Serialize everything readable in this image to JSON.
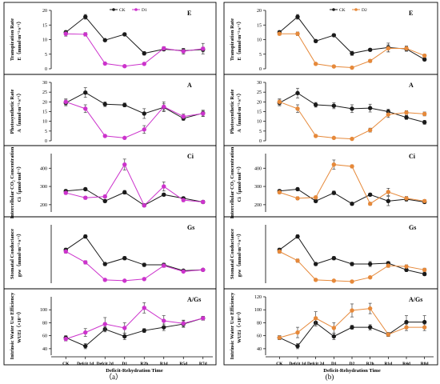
{
  "chart_data": {
    "type": "line",
    "figure_labels": [
      "（a）",
      "(b)"
    ],
    "panels": [
      {
        "id": "a",
        "label": "（a）",
        "xlabel": "Deficit-Rehydration Time",
        "categories": [
          "CK",
          "Defcit 1d",
          "Defcit 2d",
          "D1",
          "R2h",
          "R1d",
          "R5d",
          "R7d"
        ],
        "legend": [
          "CK",
          "D1"
        ],
        "subplots": [
          {
            "tag": "E",
            "ylabel": "Transpiration Rate",
            "yunit": "E（mmol·m⁻²·s⁻¹）",
            "ylim": [
              0,
              20
            ],
            "yticks": [
              0,
              5,
              10,
              15,
              20
            ],
            "series": [
              {
                "name": "CK",
                "values": [
                  12.5,
                  17.8,
                  9.8,
                  11.8,
                  5.3,
                  6.7,
                  6.2,
                  6.6
                ],
                "err": [
                  0.6,
                  0.8,
                  0.4,
                  0.5,
                  0.6,
                  0.5,
                  0.8,
                  0.8
                ]
              },
              {
                "name": "D1",
                "values": [
                  12.0,
                  11.8,
                  1.8,
                  0.9,
                  1.7,
                  7.0,
                  6.0,
                  6.9
                ],
                "err": [
                  0.8,
                  0.6,
                  0.2,
                  0.1,
                  0.2,
                  0.6,
                  1.0,
                  1.8
                ]
              }
            ]
          },
          {
            "tag": "A",
            "ylabel": "Photosynthetic Rate",
            "yunit": "A（mmol·m⁻²·s⁻¹）",
            "ylim": [
              0,
              30
            ],
            "yticks": [
              0,
              5,
              10,
              15,
              20,
              25,
              30
            ],
            "series": [
              {
                "name": "CK",
                "values": [
                  19.5,
                  24.8,
                  18.8,
                  18.4,
                  14.0,
                  17.2,
                  11.5,
                  14.2
                ],
                "err": [
                  1.5,
                  2.5,
                  1.2,
                  1.0,
                  2.5,
                  1.8,
                  1.0,
                  1.5
                ]
              },
              {
                "name": "D1",
                "values": [
                  20.0,
                  16.5,
                  2.5,
                  1.5,
                  5.8,
                  17.5,
                  12.5,
                  14.0
                ],
                "err": [
                  1.5,
                  2.0,
                  0.5,
                  0.4,
                  2.0,
                  2.5,
                  1.2,
                  1.5
                ]
              }
            ]
          },
          {
            "tag": "Ci",
            "ylabel": "Intercellular CO₂ Concentration",
            "yunit": "Ci（μmol·mol⁻¹）",
            "ylim": [
              160,
              480
            ],
            "yticks": [
              200,
              300,
              400
            ],
            "series": [
              {
                "name": "CK",
                "values": [
                  275,
                  285,
                  220,
                  268,
                  197,
                  255,
                  235,
                  215
                ],
                "err": [
                  8,
                  8,
                  8,
                  10,
                  8,
                  8,
                  8,
                  8
                ]
              },
              {
                "name": "D1",
                "values": [
                  265,
                  238,
                  245,
                  420,
                  196,
                  300,
                  225,
                  215
                ],
                "err": [
                  8,
                  8,
                  8,
                  30,
                  8,
                  25,
                  8,
                  8
                ]
              }
            ]
          },
          {
            "tag": "Gs",
            "ylabel": "Stomatal Conductance",
            "yunit": "gsw（mmol·m⁻²·s⁻¹）",
            "ylim": [
              0,
              0.7
            ],
            "yticks": [],
            "series": [
              {
                "name": "CK",
                "values": [
                  0.4,
                  0.56,
                  0.23,
                  0.3,
                  0.22,
                  0.22,
                  0.15,
                  0.16
                ],
                "err": [
                  0.02,
                  0.02,
                  0.02,
                  0.02,
                  0.02,
                  0.02,
                  0.01,
                  0.01
                ]
              },
              {
                "name": "D1",
                "values": [
                  0.38,
                  0.25,
                  0.04,
                  0.03,
                  0.05,
                  0.21,
                  0.14,
                  0.16
                ],
                "err": [
                  0.02,
                  0.02,
                  0.01,
                  0.01,
                  0.01,
                  0.02,
                  0.01,
                  0.01
                ]
              }
            ]
          },
          {
            "tag": "A/Gs",
            "ylabel": "Intrinsic Water Use Efficiency",
            "yunit": "WUEi（×10⁻³）",
            "ylim": [
              30,
              120
            ],
            "yticks": [
              40,
              60,
              80,
              100
            ],
            "series": [
              {
                "name": "CK",
                "values": [
                  57,
                  44,
                  70,
                  59,
                  68,
                  73,
                  78,
                  87
                ],
                "err": [
                  3,
                  4,
                  4,
                  5,
                  3,
                  5,
                  5,
                  3
                ]
              },
              {
                "name": "D1",
                "values": [
                  55,
                  65,
                  78,
                  72,
                  103,
                  83,
                  79,
                  87
                ],
                "err": [
                  3,
                  6,
                  10,
                  8,
                  8,
                  8,
                  5,
                  3
                ]
              }
            ]
          }
        ]
      },
      {
        "id": "b",
        "label": "(b)",
        "xlabel": "Deficit-Rehydration Time",
        "categories": [
          "CK",
          "Defcit 1d",
          "Defcit 2d",
          "D1",
          "D2",
          "R2h",
          "R1d",
          "R4d",
          "R8d"
        ],
        "legend": [
          "CK",
          "D2"
        ],
        "subplots": [
          {
            "tag": "E",
            "ylabel": "Transpiration Rate",
            "yunit": "E（mmol·m⁻²·s⁻¹）",
            "ylim": [
              0,
              20
            ],
            "yticks": [
              0,
              5,
              10,
              15,
              20
            ],
            "series": [
              {
                "name": "CK",
                "values": [
                  12.5,
                  17.8,
                  9.5,
                  11.5,
                  5.3,
                  6.5,
                  7.3,
                  6.8,
                  3.2
                ],
                "err": [
                  0.6,
                  0.8,
                  0.5,
                  0.5,
                  0.7,
                  0.5,
                  1.5,
                  0.8,
                  0.5
                ]
              },
              {
                "name": "D2",
                "values": [
                  12.0,
                  12.0,
                  1.7,
                  0.8,
                  0.4,
                  2.7,
                  7.0,
                  7.0,
                  4.5
                ],
                "err": [
                  0.5,
                  0.6,
                  0.2,
                  0.1,
                  0.1,
                  0.5,
                  1.2,
                  0.8,
                  0.5
                ]
              }
            ]
          },
          {
            "tag": "A",
            "ylabel": "Photosynthetic Rate",
            "yunit": "A（mmol·m⁻²·s⁻¹）",
            "ylim": [
              0,
              30
            ],
            "yticks": [
              0,
              5,
              10,
              15,
              20,
              25,
              30
            ],
            "series": [
              {
                "name": "CK",
                "values": [
                  19.5,
                  24.5,
                  18.5,
                  18.0,
                  16.5,
                  16.8,
                  15.0,
                  12.0,
                  9.5
                ],
                "err": [
                  1.5,
                  2.5,
                  1.2,
                  1.5,
                  2.0,
                  2.0,
                  1.2,
                  1.0,
                  1.0
                ]
              },
              {
                "name": "D2",
                "values": [
                  20.0,
                  16.5,
                  2.5,
                  1.5,
                  1.0,
                  5.5,
                  13.5,
                  14.5,
                  13.8
                ],
                "err": [
                  1.5,
                  2.0,
                  0.5,
                  0.3,
                  0.3,
                  1.0,
                  1.5,
                  1.0,
                  1.0
                ]
              }
            ]
          },
          {
            "tag": "Ci",
            "ylabel": "Intercellular CO₂ Concentration",
            "yunit": "Ci（μmol·mol⁻¹）",
            "ylim": [
              160,
              480
            ],
            "yticks": [
              200,
              300,
              400
            ],
            "series": [
              {
                "name": "CK",
                "values": [
                  275,
                  285,
                  220,
                  265,
                  205,
                  255,
                  220,
                  230,
                  215
                ],
                "err": [
                  8,
                  8,
                  8,
                  10,
                  8,
                  8,
                  25,
                  10,
                  8
                ]
              },
              {
                "name": "D2",
                "values": [
                  268,
                  235,
                  240,
                  420,
                  410,
                  205,
                  270,
                  235,
                  220
                ],
                "err": [
                  8,
                  8,
                  8,
                  25,
                  8,
                  8,
                  20,
                  10,
                  8
                ]
              }
            ]
          },
          {
            "tag": "Gs",
            "ylabel": "Stomatal Conductance",
            "yunit": "gsw（mmol·m⁻²·s⁻¹）",
            "ylim": [
              0,
              0.7
            ],
            "yticks": [],
            "series": [
              {
                "name": "CK",
                "values": [
                  0.4,
                  0.56,
                  0.23,
                  0.3,
                  0.23,
                  0.23,
                  0.24,
                  0.16,
                  0.11
                ],
                "err": [
                  0.02,
                  0.02,
                  0.02,
                  0.02,
                  0.02,
                  0.03,
                  0.02,
                  0.02,
                  0.02
                ]
              },
              {
                "name": "D2",
                "values": [
                  0.38,
                  0.27,
                  0.04,
                  0.03,
                  0.02,
                  0.07,
                  0.21,
                  0.2,
                  0.16
                ],
                "err": [
                  0.02,
                  0.02,
                  0.01,
                  0.01,
                  0.01,
                  0.01,
                  0.02,
                  0.02,
                  0.02
                ]
              }
            ]
          },
          {
            "tag": "A/Gs",
            "ylabel": "Intrinsic Water Use Efficiency",
            "yunit": "WUEi（×10⁻³）",
            "ylim": [
              30,
              120
            ],
            "yticks": [
              40,
              60,
              80,
              100,
              120
            ],
            "series": [
              {
                "name": "CK",
                "values": [
                  57,
                  44,
                  80,
                  59,
                  73,
                  73,
                  62,
                  81,
                  81
                ],
                "err": [
                  3,
                  4,
                  5,
                  5,
                  3,
                  4,
                  3,
                  10,
                  10
                ]
              },
              {
                "name": "D2",
                "values": [
                  57,
                  65,
                  87,
                  72,
                  99,
                  102,
                  62,
                  73,
                  73
                ],
                "err": [
                  3,
                  8,
                  10,
                  8,
                  10,
                  8,
                  3,
                  5,
                  5
                ]
              }
            ]
          }
        ]
      }
    ]
  },
  "colors": {
    "CK": "#1a1a1a",
    "D1": "#cc33cc",
    "D2": "#e6893a",
    "axis": "#000000",
    "errorbar": "#444444"
  }
}
